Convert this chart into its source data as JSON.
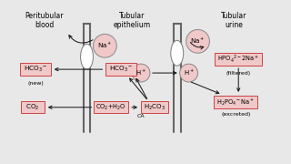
{
  "bg_color": "#e8e8e8",
  "box_fill": "#f0c8c8",
  "box_edge": "#cc4444",
  "circle_fill": "#f0c8c8",
  "circle_edge": "#888888",
  "membrane_color": "#666666",
  "text_color": "#000000",
  "arrow_color": "#111111",
  "label_peritubular": "Peritubular\nblood",
  "label_epithelium": "Tubular\nepithelium",
  "label_urine": "Tubular\nurine",
  "label_new": "(new)",
  "label_filtered": "(filtered)",
  "label_excreted": "(excreted)",
  "label_ca": "CA"
}
